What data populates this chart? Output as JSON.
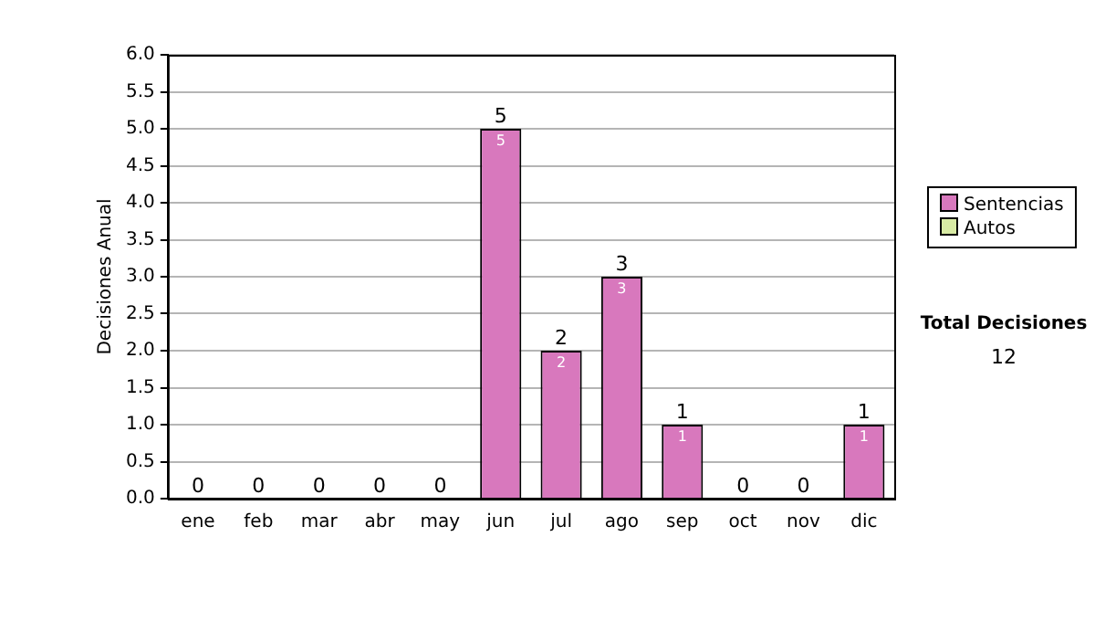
{
  "chart_data": {
    "type": "bar",
    "ylabel": "Decisiones Anual",
    "categories": [
      "ene",
      "feb",
      "mar",
      "abr",
      "may",
      "jun",
      "jul",
      "ago",
      "sep",
      "oct",
      "nov",
      "dic"
    ],
    "series": [
      {
        "name": "Sentencias",
        "color": "#d878bd",
        "values": [
          0,
          0,
          0,
          0,
          0,
          5,
          2,
          3,
          1,
          0,
          0,
          1
        ],
        "value_labels": [
          null,
          null,
          null,
          null,
          null,
          "5",
          "2",
          "3",
          "1",
          null,
          null,
          "1"
        ]
      },
      {
        "name": "Autos",
        "color": "#d8eba4",
        "values": [
          0,
          0,
          0,
          0,
          0,
          0,
          0,
          0,
          0,
          0,
          0,
          0
        ]
      }
    ],
    "stacked": true,
    "totals": [
      "0",
      "0",
      "0",
      "0",
      "0",
      "5",
      "2",
      "3",
      "1",
      "0",
      "0",
      "1"
    ],
    "ylim": [
      0,
      6
    ],
    "yticks": [
      {
        "value": 0,
        "label": "0.0"
      },
      {
        "value": 0.5,
        "label": "0.5"
      },
      {
        "value": 1,
        "label": "1.0"
      },
      {
        "value": 1.5,
        "label": "1.5"
      },
      {
        "value": 2,
        "label": "2.0"
      },
      {
        "value": 2.5,
        "label": "2.5"
      },
      {
        "value": 3,
        "label": "3.0"
      },
      {
        "value": 3.5,
        "label": "3.5"
      },
      {
        "value": 4,
        "label": "4.0"
      },
      {
        "value": 4.5,
        "label": "4.5"
      },
      {
        "value": 5,
        "label": "5.0"
      },
      {
        "value": 5.5,
        "label": "5.5"
      },
      {
        "value": 6,
        "label": "6.0"
      }
    ],
    "grid": "y",
    "legend": "right",
    "annotations": [
      "Total Decisiones",
      "12"
    ]
  }
}
